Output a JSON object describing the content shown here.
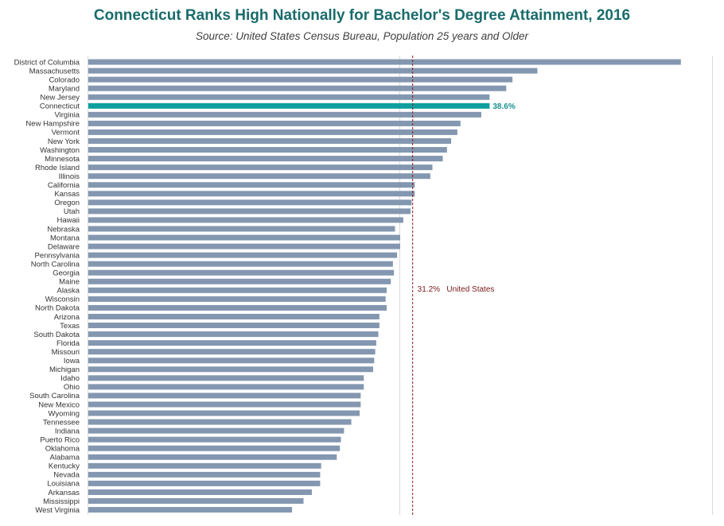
{
  "title": "Connecticut Ranks High Nationally for Bachelor's Degree Attainment, 2016",
  "subtitle": "Source: United States Census Bureau, Population 25 years and Older",
  "colors": {
    "bar": "#8497b0",
    "highlight": "#0e9e9e",
    "reference": "#8b1a1a",
    "title": "#1a6b6b"
  },
  "chart_data": {
    "type": "bar",
    "orientation": "horizontal",
    "categories": [
      "District of Columbia",
      "Massachusetts",
      "Colorado",
      "Maryland",
      "New Jersey",
      "Connecticut",
      "Virginia",
      "New Hampshire",
      "Vermont",
      "New York",
      "Washington",
      "Minnesota",
      "Rhode Island",
      "Illinois",
      "California",
      "Kansas",
      "Oregon",
      "Utah",
      "Hawaii",
      "Nebraska",
      "Montana",
      "Delaware",
      "Pennsylvania",
      "North Carolina",
      "Georgia",
      "Maine",
      "Alaska",
      "Wisconsin",
      "North Dakota",
      "Arizona",
      "Texas",
      "South Dakota",
      "Florida",
      "Missouri",
      "Iowa",
      "Michigan",
      "Idaho",
      "Ohio",
      "South Carolina",
      "New Mexico",
      "Wyoming",
      "Tennessee",
      "Indiana",
      "Puerto Rico",
      "Oklahoma",
      "Alabama",
      "Kentucky",
      "Nevada",
      "Louisiana",
      "Arkansas",
      "Mississippi",
      "West Virginia"
    ],
    "values": [
      57.0,
      43.2,
      40.8,
      40.2,
      38.6,
      38.6,
      37.8,
      35.8,
      35.5,
      34.9,
      34.5,
      34.1,
      33.1,
      32.9,
      31.4,
      31.4,
      31.1,
      31.0,
      30.3,
      29.5,
      30.0,
      30.0,
      29.7,
      29.3,
      29.4,
      29.1,
      28.7,
      28.6,
      28.7,
      28.0,
      28.0,
      27.9,
      27.7,
      27.6,
      27.5,
      27.4,
      26.5,
      26.5,
      26.2,
      26.2,
      26.1,
      25.3,
      24.6,
      24.3,
      24.2,
      23.9,
      22.4,
      22.3,
      22.3,
      21.5,
      20.7,
      19.6
    ],
    "highlight": {
      "category": "Connecticut",
      "label": "38.6%"
    },
    "reference_line": {
      "value": 31.2,
      "label_value": "31.2%",
      "label_name": "United States"
    },
    "xlim": [
      0,
      60
    ]
  }
}
